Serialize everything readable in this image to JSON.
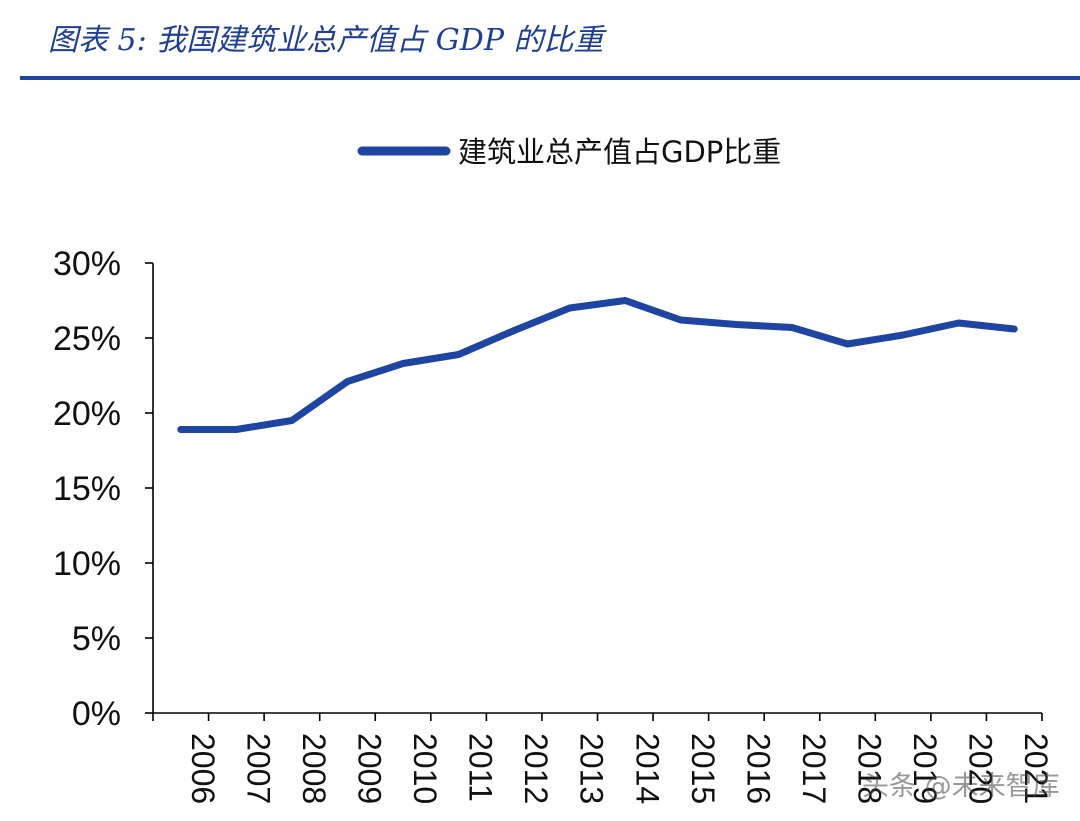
{
  "figure": {
    "title": "图表 5:  我国建筑业总产值占 GDP 的比重"
  },
  "watermark": "头条 @未来智库",
  "colors": {
    "series": "#1f45a3",
    "title": "#1f3f95",
    "rule": "#1f45a3",
    "axis": "#000000"
  },
  "chart_data": {
    "type": "line",
    "title": "",
    "xlabel": "",
    "ylabel": "",
    "categories": [
      "2006",
      "2007",
      "2008",
      "2009",
      "2010",
      "2011",
      "2012",
      "2013",
      "2014",
      "2015",
      "2016",
      "2017",
      "2018",
      "2019",
      "2020",
      "2021"
    ],
    "series": [
      {
        "name": "建筑业总产值占GDP比重",
        "values": [
          18.9,
          18.9,
          19.5,
          22.1,
          23.3,
          23.9,
          25.5,
          27.0,
          27.5,
          26.2,
          25.9,
          25.7,
          24.6,
          25.2,
          26.0,
          25.6
        ]
      }
    ],
    "ylim": [
      0,
      30
    ],
    "yticks": [
      0,
      5,
      10,
      15,
      20,
      25,
      30
    ],
    "ytick_labels": [
      "0%",
      "5%",
      "10%",
      "15%",
      "20%",
      "25%",
      "30%"
    ],
    "grid": false,
    "legend": "top"
  }
}
